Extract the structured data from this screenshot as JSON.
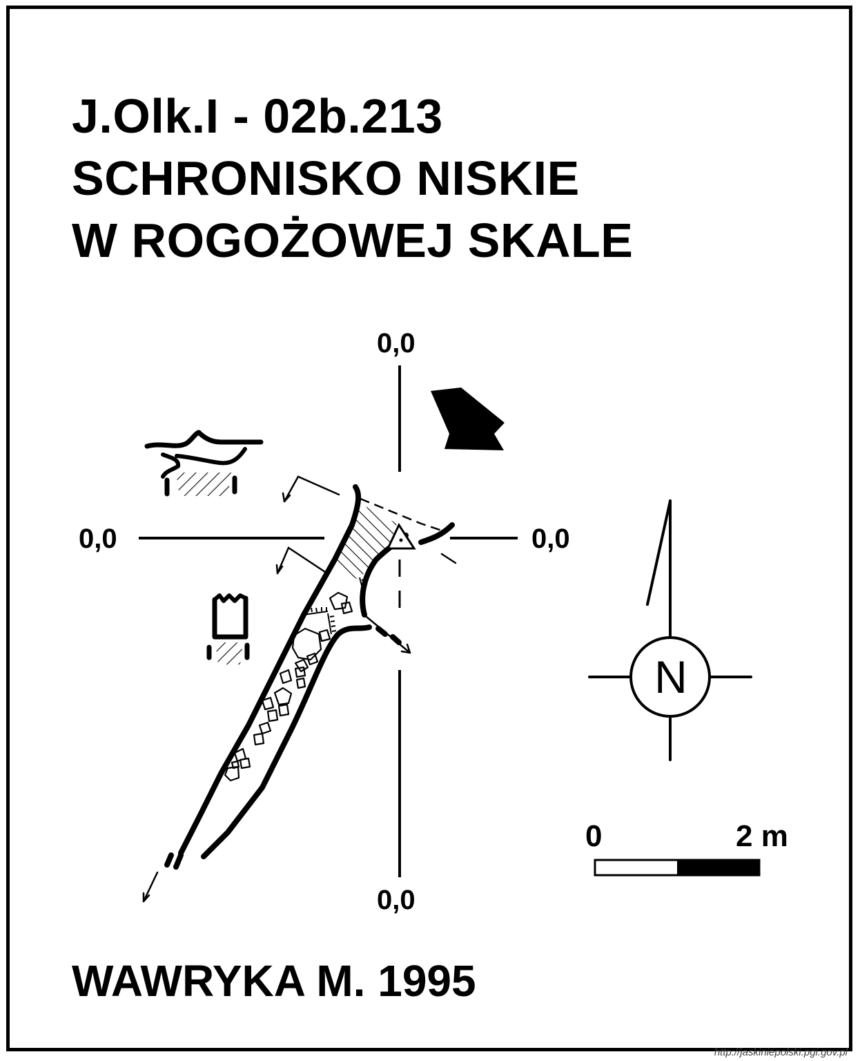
{
  "title": {
    "code": "J.Olk.I - 02b.213",
    "name_line1": "SCHRONISKO NISKIE",
    "name_line2": "W ROGOŻOWEJ SKALE"
  },
  "axis_labels": {
    "top": "0,0",
    "left": "0,0",
    "right": "0,0",
    "bottom": "0,0"
  },
  "compass": {
    "letter": "N",
    "icon": "north-arrow-icon"
  },
  "scale_bar": {
    "start_label": "0",
    "end_label": "2 m"
  },
  "author": "WAWRYKA M. 1995",
  "source": "http://jaskiniepolski.pgi.gov.pl",
  "colors": {
    "ink": "#000000",
    "paper": "#ffffff"
  }
}
